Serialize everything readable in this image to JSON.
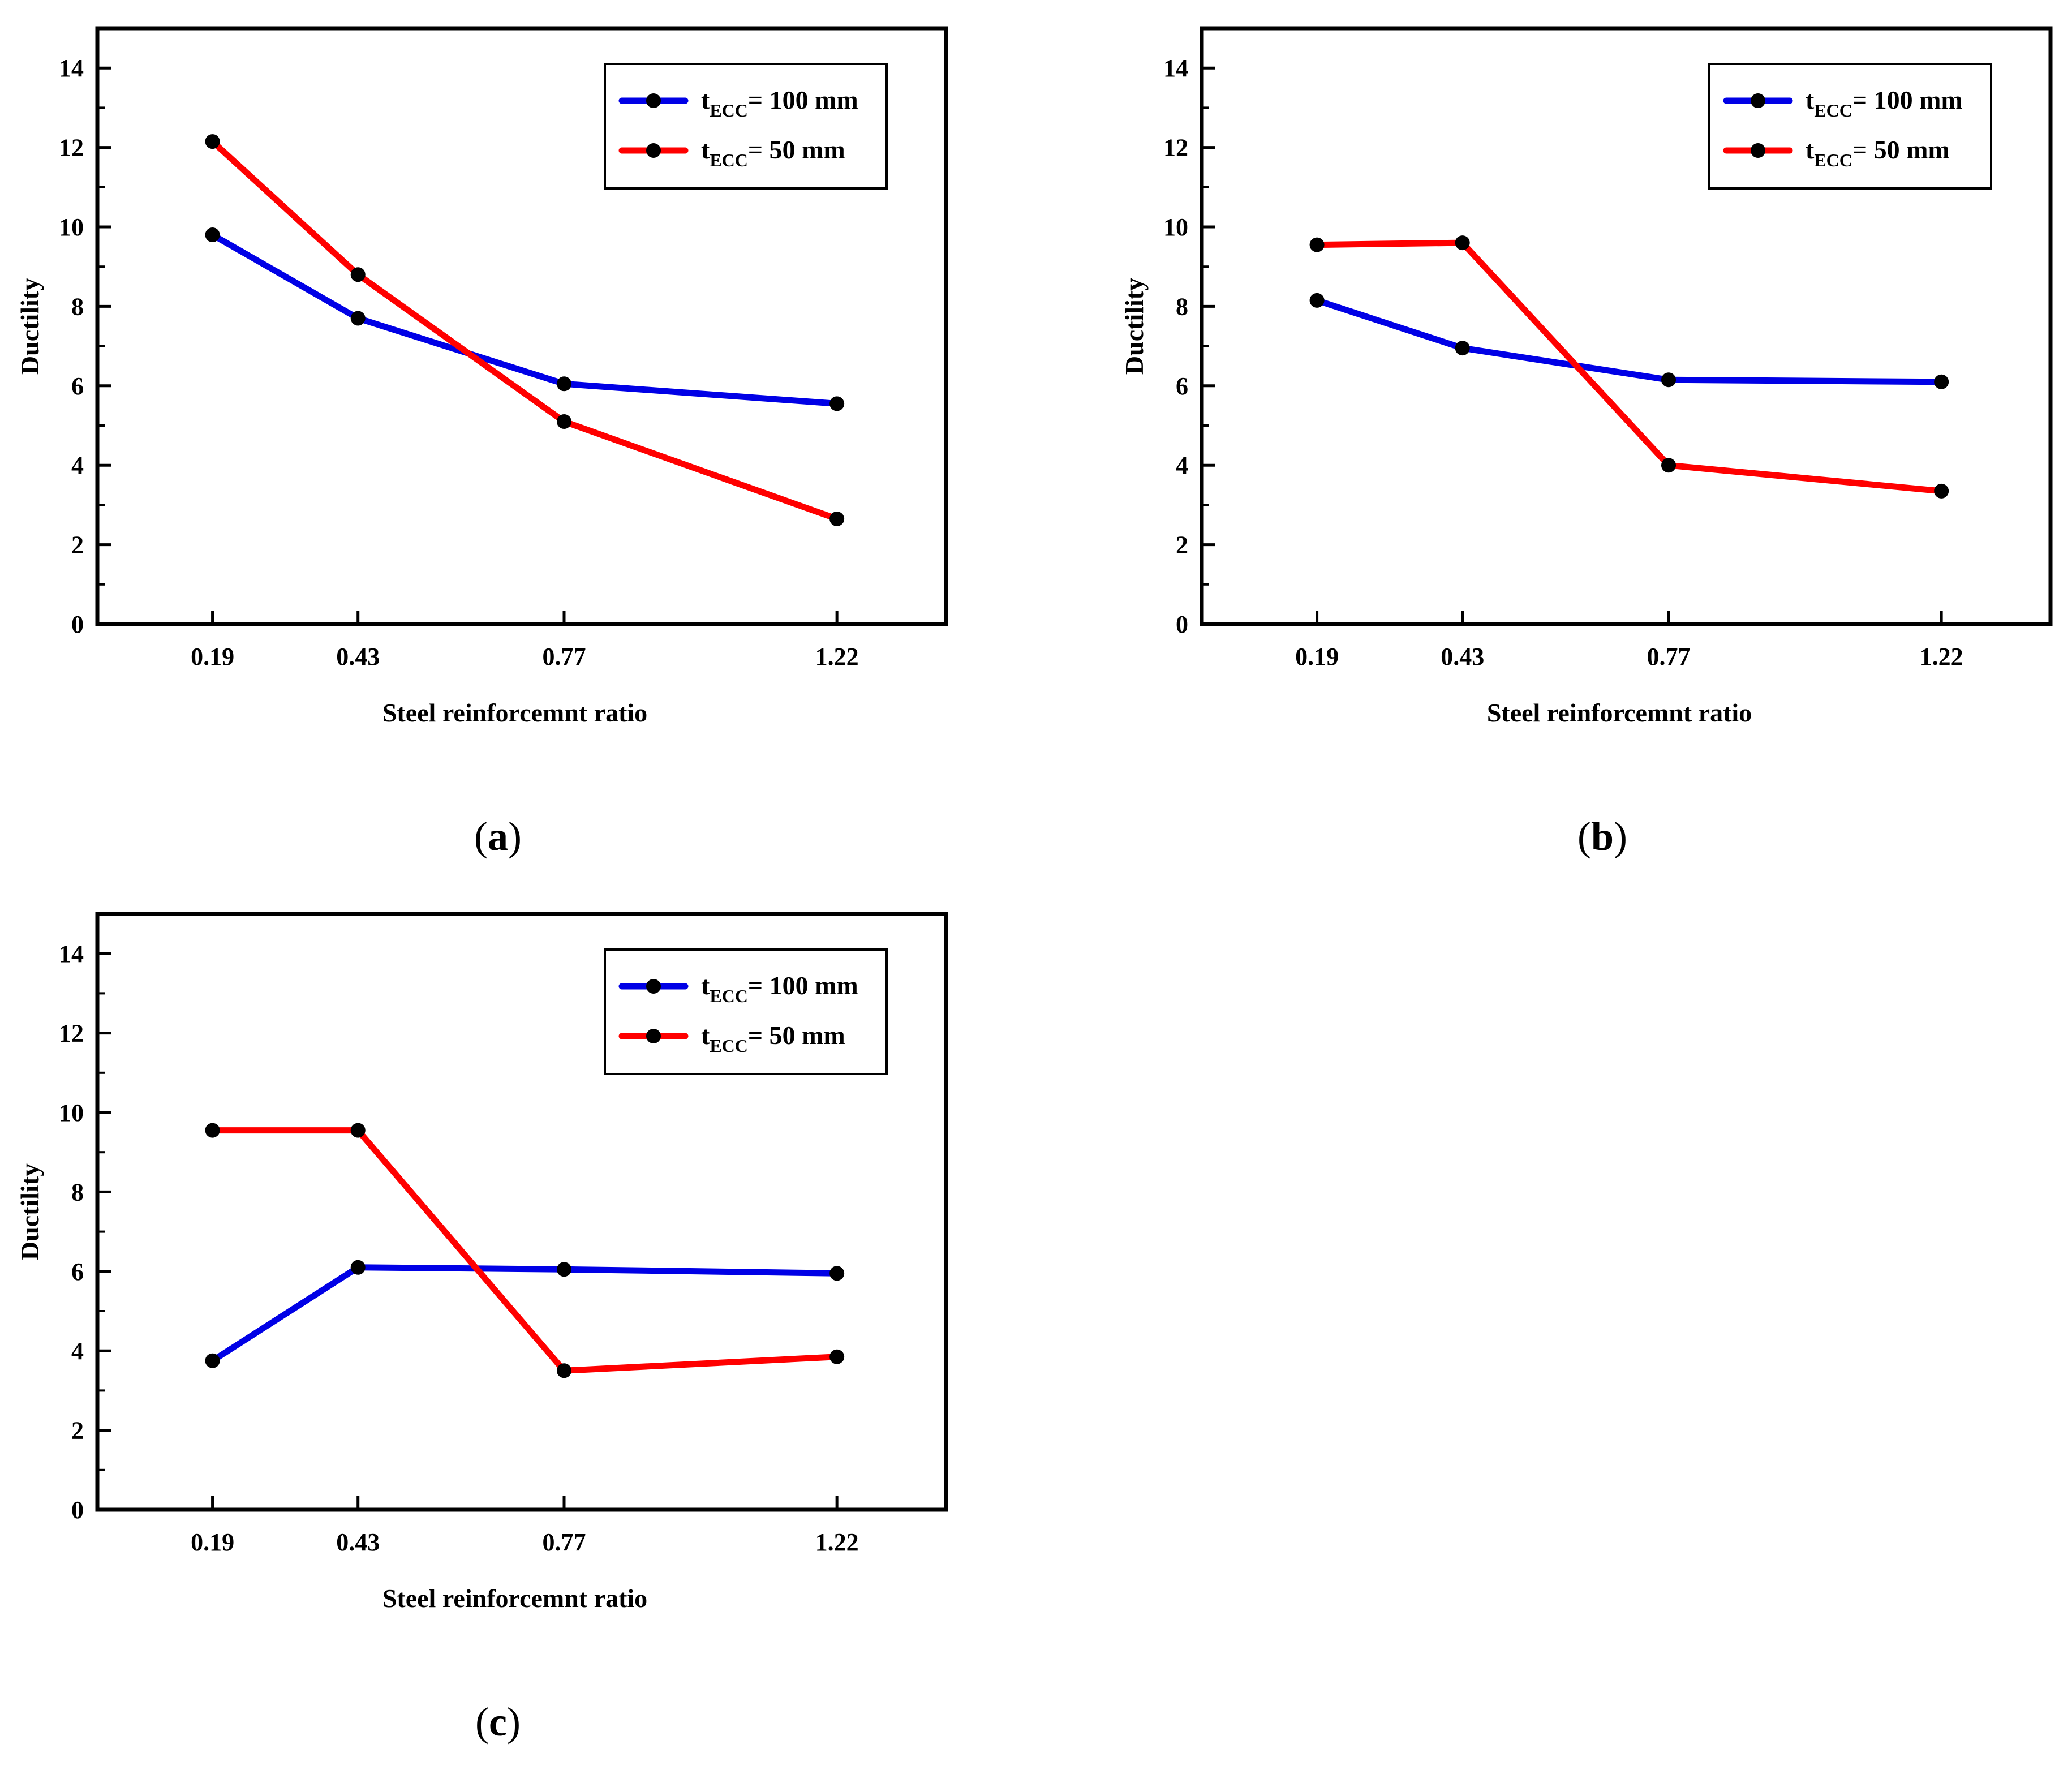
{
  "chart_data": [
    {
      "type": "line",
      "panel": "a",
      "caption": {
        "open": "(",
        "letter": "a",
        "close": ")"
      },
      "xlabel": "Steel reinforcemnt ratio",
      "ylabel": "Ductility",
      "categories": [
        "0.19",
        "0.43",
        "0.77",
        "1.22"
      ],
      "x": [
        0.19,
        0.43,
        0.77,
        1.22
      ],
      "xlim": [
        0.0,
        1.4
      ],
      "ylim": [
        0,
        15
      ],
      "yticks": [
        0,
        2,
        4,
        6,
        8,
        10,
        12,
        14
      ],
      "grid": false,
      "legend_position": "top-right",
      "series": [
        {
          "name": "tECC= 100 mm",
          "label_main": "t",
          "label_sub": "ECC",
          "label_rest": "= 100 mm",
          "color": "#0000e6",
          "values": [
            9.8,
            7.7,
            6.05,
            5.55
          ]
        },
        {
          "name": "tECC= 50 mm",
          "label_main": "t",
          "label_sub": "ECC",
          "label_rest": "= 50 mm",
          "color": "#ff0000",
          "values": [
            12.15,
            8.8,
            5.1,
            2.65
          ]
        }
      ]
    },
    {
      "type": "line",
      "panel": "b",
      "caption": {
        "open": "(",
        "letter": "b",
        "close": ")"
      },
      "xlabel": "Steel reinforcemnt ratio",
      "ylabel": "Ductility",
      "categories": [
        "0.19",
        "0.43",
        "0.77",
        "1.22"
      ],
      "x": [
        0.19,
        0.43,
        0.77,
        1.22
      ],
      "xlim": [
        0.0,
        1.4
      ],
      "ylim": [
        0,
        15
      ],
      "yticks": [
        0,
        2,
        4,
        6,
        8,
        10,
        12,
        14
      ],
      "grid": false,
      "legend_position": "top-right",
      "series": [
        {
          "name": "tECC= 100 mm",
          "label_main": "t",
          "label_sub": "ECC",
          "label_rest": "= 100 mm",
          "color": "#0000e6",
          "values": [
            8.15,
            6.95,
            6.15,
            6.1
          ]
        },
        {
          "name": "tECC= 50 mm",
          "label_main": "t",
          "label_sub": "ECC",
          "label_rest": "= 50 mm",
          "color": "#ff0000",
          "values": [
            9.55,
            9.6,
            4.0,
            3.35
          ]
        }
      ]
    },
    {
      "type": "line",
      "panel": "c",
      "caption": {
        "open": "(",
        "letter": "c",
        "close": ")"
      },
      "xlabel": "Steel reinforcemnt ratio",
      "ylabel": "Ductility",
      "categories": [
        "0.19",
        "0.43",
        "0.77",
        "1.22"
      ],
      "x": [
        0.19,
        0.43,
        0.77,
        1.22
      ],
      "xlim": [
        0.0,
        1.4
      ],
      "ylim": [
        0,
        15
      ],
      "yticks": [
        0,
        2,
        4,
        6,
        8,
        10,
        12,
        14
      ],
      "grid": false,
      "legend_position": "top-right",
      "series": [
        {
          "name": "tECC= 100 mm",
          "label_main": "t",
          "label_sub": "ECC",
          "label_rest": "= 100 mm",
          "color": "#0000e6",
          "values": [
            3.75,
            6.1,
            6.05,
            5.95
          ]
        },
        {
          "name": "tECC= 50 mm",
          "label_main": "t",
          "label_sub": "ECC",
          "label_rest": "= 50 mm",
          "color": "#ff0000",
          "values": [
            9.55,
            9.55,
            3.5,
            3.85
          ]
        }
      ]
    }
  ]
}
